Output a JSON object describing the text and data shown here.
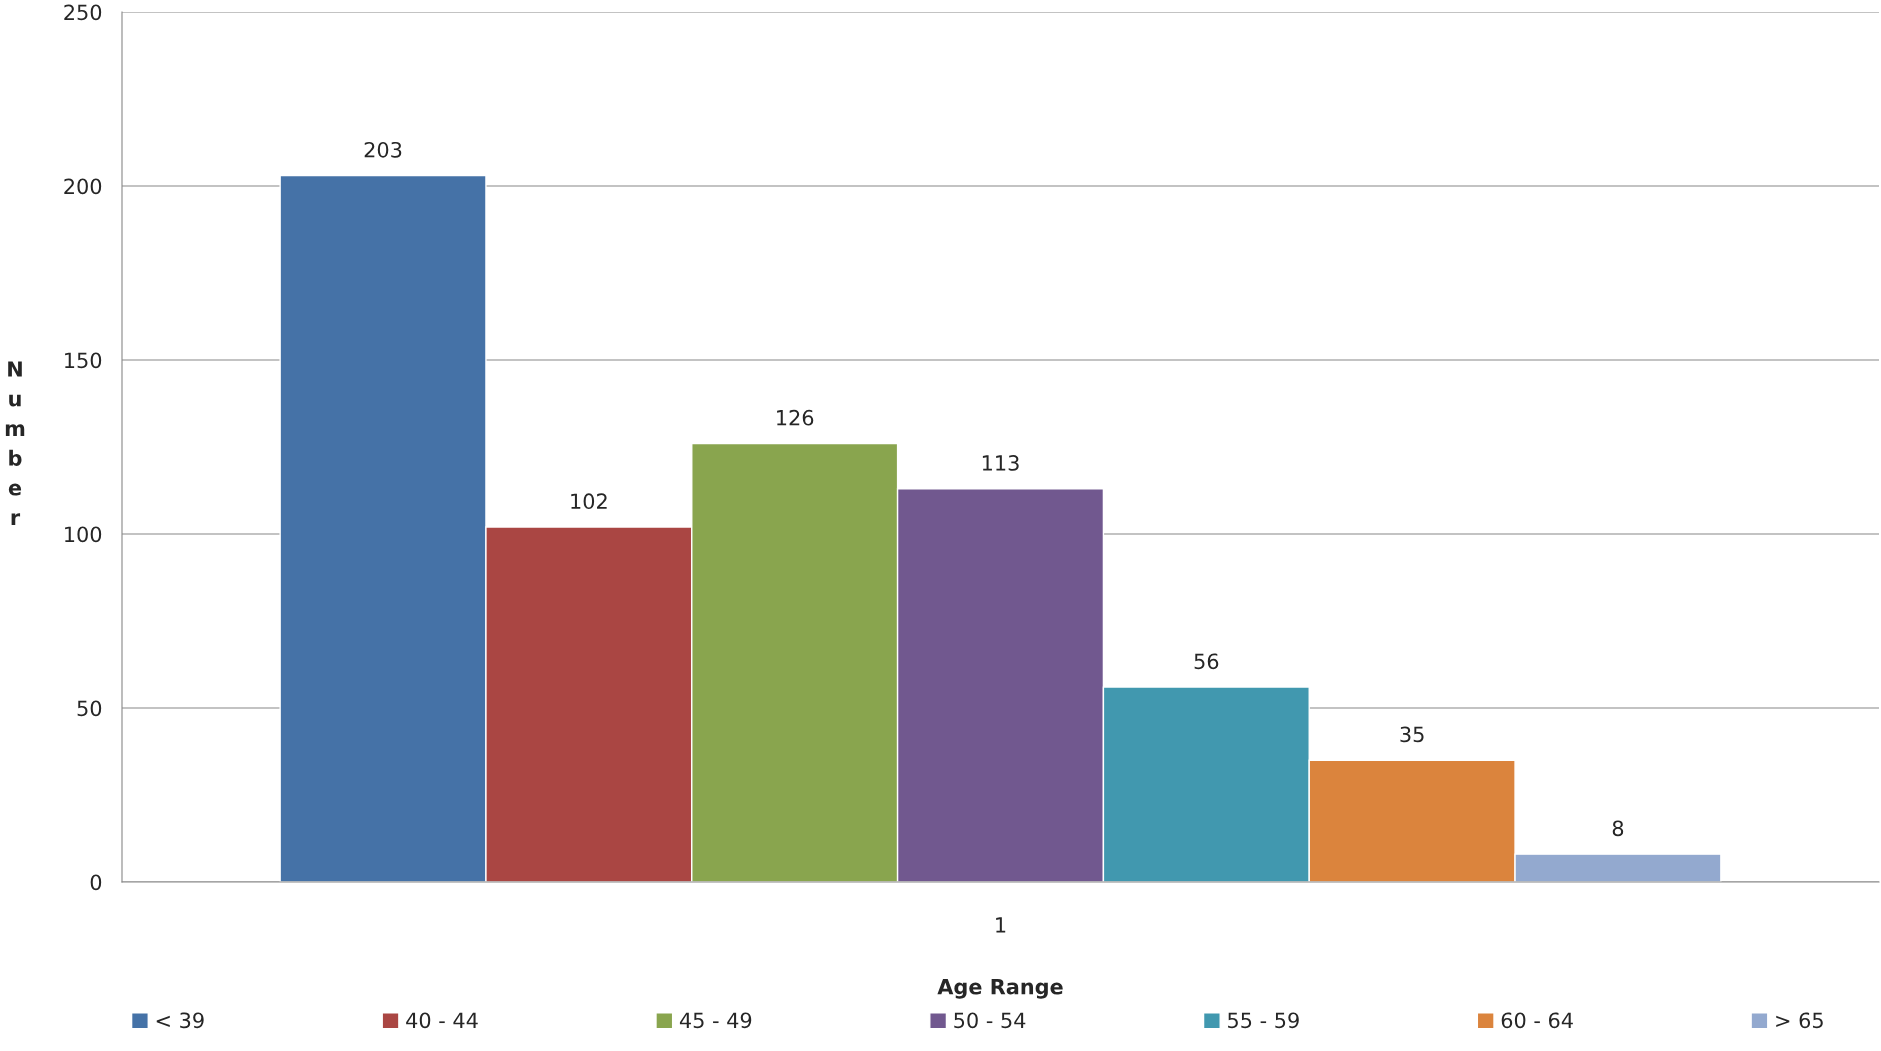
{
  "chart_data": {
    "type": "bar",
    "categories": [
      "1"
    ],
    "xlabel": "Age Range",
    "ylabel": "Number",
    "series": [
      {
        "name": "< 39",
        "color": "#4572a7",
        "values": [
          203
        ]
      },
      {
        "name": "40 - 44",
        "color": "#aa4643",
        "values": [
          102
        ]
      },
      {
        "name": "45 - 49",
        "color": "#89a54e",
        "values": [
          126
        ]
      },
      {
        "name": "50 - 54",
        "color": "#71588f",
        "values": [
          113
        ]
      },
      {
        "name": "55 - 59",
        "color": "#4198af",
        "values": [
          56
        ]
      },
      {
        "name": "60 - 64",
        "color": "#db843d",
        "values": [
          35
        ]
      },
      {
        "name": "> 65",
        "color": "#93a9cf",
        "values": [
          8
        ]
      }
    ],
    "ylim": [
      0,
      250
    ],
    "yticks": [
      0,
      50,
      100,
      150,
      200,
      250
    ],
    "grid": "y",
    "legend": "bottom",
    "data_labels": true
  }
}
